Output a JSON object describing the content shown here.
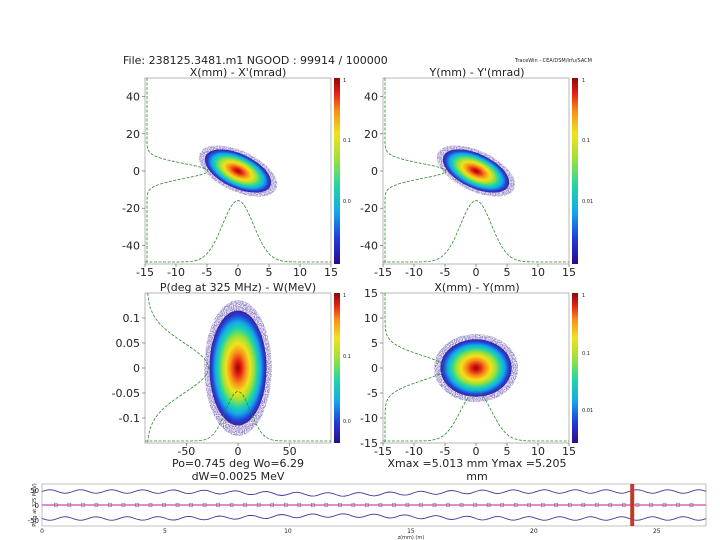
{
  "header": {
    "file_line": "File: 238125.3481.m1   NGOOD : 99914 / 100000",
    "brand": "TraceWin - CEA/DSM/Irfu/SACM"
  },
  "colors": {
    "density_stops": [
      "#2a0a8c",
      "#1f3fd8",
      "#16a8e8",
      "#1fd6a6",
      "#9be03a",
      "#f1e21a",
      "#f7911a",
      "#e51d12",
      "#8a0a08"
    ],
    "profile": "#2a8a2a",
    "envelope": "#3a3aa0",
    "cursor": "#c0392b",
    "beamline": "#e060c0"
  },
  "colorbar_ticks": {
    "top_left": [
      "1",
      "0.1",
      "0.0"
    ],
    "top_right": [
      "1",
      "0.1",
      "0.01"
    ],
    "bottom_left": [
      "1",
      "0.1",
      "0.0"
    ],
    "bottom_right": [
      "1",
      "0.1",
      "0.01"
    ]
  },
  "panels": [
    {
      "title": "X(mm) - X'(mrad)",
      "xticks": [
        "-15",
        "-10",
        "-5",
        "0",
        "5",
        "10",
        "15"
      ],
      "yticks": [
        "40",
        "20",
        "0",
        "-20",
        "-40"
      ],
      "xlim": [
        -15,
        15
      ],
      "ylim": [
        -50,
        50
      ]
    },
    {
      "title": "Y(mm) - Y'(mrad)",
      "xticks": [
        "-15",
        "-10",
        "-5",
        "0",
        "5",
        "10",
        "15"
      ],
      "yticks": [
        "40",
        "20",
        "0",
        "-20",
        "-40"
      ],
      "xlim": [
        -15,
        15
      ],
      "ylim": [
        -50,
        50
      ]
    },
    {
      "title": "P(deg at 325 MHz) - W(MeV)",
      "xticks": [
        "-50",
        "0",
        "50"
      ],
      "yticks": [
        "0.1",
        "0.05",
        "0",
        "-0.05",
        "-0.1"
      ],
      "xlim": [
        -90,
        90
      ],
      "ylim": [
        -0.15,
        0.15
      ]
    },
    {
      "title": "X(mm) - Y(mm)",
      "xticks": [
        "-15",
        "-10",
        "-5",
        "0",
        "5",
        "10",
        "15"
      ],
      "yticks": [
        "15",
        "10",
        "5",
        "0",
        "-5",
        "-10",
        "-15"
      ],
      "xlim": [
        -15,
        15
      ],
      "ylim": [
        -15,
        15
      ]
    }
  ],
  "footer": {
    "left_line1": "Po=0.745 deg  Wo=6.29",
    "left_line2": "dW=0.0025 MeV",
    "right_line1": "Xmax =5.013 mm  Ymax =5.205",
    "right_line2": "mm"
  },
  "beamline": {
    "ylabel": "Ph(g at 325 MeV)",
    "yticks": [
      "50",
      "0",
      "-50"
    ],
    "xticks": [
      "0",
      "5",
      "10",
      "15",
      "20",
      "25"
    ],
    "xlabel": "z(mm) (m)"
  },
  "chart_data": [
    {
      "type": "heatmap",
      "title": "X(mm) - X'(mrad)",
      "x_range": [
        -15,
        15
      ],
      "y_range": [
        -50,
        50
      ],
      "beam_center": [
        0,
        0
      ],
      "beam_sigma": [
        2.5,
        4
      ],
      "tilt_deg": -25,
      "profiles": [
        "X projection",
        "X' projection"
      ]
    },
    {
      "type": "heatmap",
      "title": "Y(mm) - Y'(mrad)",
      "x_range": [
        -15,
        15
      ],
      "y_range": [
        -50,
        50
      ],
      "beam_center": [
        0,
        0
      ],
      "beam_sigma": [
        2.5,
        4
      ],
      "tilt_deg": -25,
      "profiles": [
        "Y projection",
        "Y' projection"
      ]
    },
    {
      "type": "heatmap",
      "title": "P(deg at 325 MHz) - W(MeV)",
      "x_range": [
        -90,
        90
      ],
      "y_range": [
        -0.15,
        0.15
      ],
      "beam_center": [
        0,
        0
      ],
      "beam_sigma": [
        12,
        0.05
      ],
      "tilt_deg": 0,
      "profiles": [
        "P projection",
        "W projection"
      ]
    },
    {
      "type": "heatmap",
      "title": "X(mm) - Y(mm)",
      "x_range": [
        -15,
        15
      ],
      "y_range": [
        -15,
        15
      ],
      "beam_center": [
        0,
        0
      ],
      "beam_sigma": [
        2.5,
        2.5
      ],
      "tilt_deg": 0,
      "profiles": [
        "X projection",
        "Y projection"
      ]
    },
    {
      "type": "line",
      "ylabel": "Ph(g at 325 MeV)",
      "x_range": [
        0,
        27
      ],
      "y_range": [
        -70,
        70
      ],
      "cursor_at": 24
    }
  ]
}
